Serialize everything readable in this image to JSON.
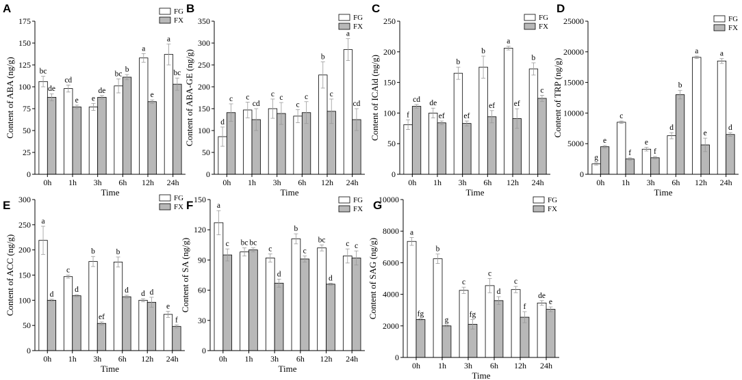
{
  "figure": {
    "colors": {
      "FG": "#ffffff",
      "FX": "#b8b8b8",
      "stroke": "#000000",
      "error": "#999999"
    }
  },
  "chart_data": [
    {
      "id": "A",
      "type": "bar",
      "categories": [
        "0h",
        "1h",
        "3h",
        "6h",
        "12h",
        "24h"
      ],
      "xlabel": "Time",
      "ylabel": "Content of ABA (ng/g)",
      "ylim": [
        0,
        175
      ],
      "yticks": [
        0,
        25,
        50,
        75,
        100,
        125,
        150,
        175
      ],
      "legend": [
        "FG",
        "FX"
      ],
      "legend_position": "top-right",
      "series": [
        {
          "name": "FG",
          "values": [
            106,
            98,
            77,
            101,
            133,
            137
          ],
          "errors": [
            6,
            4,
            4,
            8,
            5,
            12
          ],
          "labels": [
            "bc",
            "cd",
            "e",
            "bc",
            "a",
            "a"
          ]
        },
        {
          "name": "FX",
          "values": [
            88,
            77,
            88,
            111,
            83,
            103
          ],
          "errors": [
            4,
            2,
            2,
            3,
            2,
            7
          ],
          "labels": [
            "de",
            "e",
            "de",
            "b",
            "e",
            "bc"
          ]
        }
      ]
    },
    {
      "id": "B",
      "type": "bar",
      "categories": [
        "0h",
        "1h",
        "3h",
        "6h",
        "12h",
        "24h"
      ],
      "xlabel": "Time",
      "ylabel": "Content of ABA-GE (ng/g)",
      "ylim": [
        0,
        350
      ],
      "yticks": [
        0,
        50,
        100,
        150,
        200,
        250,
        300,
        350
      ],
      "legend": [
        "FG",
        "FX"
      ],
      "legend_position": "top-right",
      "series": [
        {
          "name": "FG",
          "values": [
            86,
            147,
            150,
            133,
            227,
            285
          ],
          "errors": [
            22,
            18,
            22,
            15,
            30,
            25
          ],
          "labels": [
            "d",
            "c",
            "c",
            "c",
            "b",
            "a"
          ]
        },
        {
          "name": "FX",
          "values": [
            141,
            125,
            139,
            141,
            144,
            125
          ],
          "errors": [
            20,
            25,
            25,
            25,
            28,
            25
          ],
          "labels": [
            "c",
            "cd",
            "c",
            "c",
            "c",
            "cd"
          ]
        }
      ]
    },
    {
      "id": "C",
      "type": "bar",
      "categories": [
        "0h",
        "1h",
        "3h",
        "6h",
        "12h",
        "24h"
      ],
      "xlabel": "Time",
      "ylabel": "Content of ICAld (ng/g)",
      "ylim": [
        0,
        250
      ],
      "yticks": [
        0,
        50,
        100,
        150,
        200,
        250
      ],
      "legend": [
        "FG",
        "FX"
      ],
      "legend_position": "top-right",
      "series": [
        {
          "name": "FG",
          "values": [
            81,
            100,
            165,
            175,
            206,
            172
          ],
          "errors": [
            8,
            8,
            10,
            18,
            3,
            10
          ],
          "labels": [
            "f",
            "de",
            "b",
            "b",
            "a",
            "b"
          ]
        },
        {
          "name": "FX",
          "values": [
            111,
            84,
            83,
            94,
            91,
            124
          ],
          "errors": [
            3,
            3,
            4,
            10,
            16,
            5
          ],
          "labels": [
            "cd",
            "ef",
            "ef",
            "ef",
            "ef",
            "c"
          ]
        }
      ]
    },
    {
      "id": "D",
      "type": "bar",
      "categories": [
        "0h",
        "1h",
        "3h",
        "6h",
        "12h",
        "24h"
      ],
      "xlabel": "Time",
      "ylabel": "Content of TRP (ng/g)",
      "ylim": [
        0,
        25000
      ],
      "yticks": [
        0,
        5000,
        10000,
        15000,
        20000,
        25000
      ],
      "legend": [
        "FG",
        "FX"
      ],
      "legend_position": "top-right",
      "series": [
        {
          "name": "FG",
          "values": [
            1700,
            8500,
            4100,
            6300,
            19100,
            18500
          ],
          "errors": [
            200,
            200,
            300,
            500,
            200,
            400
          ],
          "labels": [
            "g",
            "c",
            "e",
            "d",
            "a",
            "a"
          ]
        },
        {
          "name": "FX",
          "values": [
            4500,
            2500,
            2700,
            13000,
            4800,
            6500
          ],
          "errors": [
            200,
            200,
            200,
            700,
            1100,
            300
          ],
          "labels": [
            "e",
            "f",
            "f",
            "b",
            "e",
            "d"
          ]
        }
      ]
    },
    {
      "id": "E",
      "type": "bar",
      "categories": [
        "0h",
        "1h",
        "3h",
        "6h",
        "12h",
        "24h"
      ],
      "xlabel": "Time",
      "ylabel": "Content of ACC (ng/g)",
      "ylim": [
        0,
        300
      ],
      "yticks": [
        0,
        50,
        100,
        150,
        200,
        250,
        300
      ],
      "legend": [
        "FG",
        "FX"
      ],
      "legend_position": "top-right",
      "series": [
        {
          "name": "FG",
          "values": [
            219,
            147,
            177,
            176,
            100,
            72
          ],
          "errors": [
            28,
            3,
            10,
            10,
            3,
            6
          ],
          "labels": [
            "a",
            "c",
            "b",
            "b",
            "d",
            "e"
          ]
        },
        {
          "name": "FX",
          "values": [
            100,
            109,
            54,
            107,
            96,
            48
          ],
          "errors": [
            2,
            2,
            3,
            3,
            10,
            3
          ],
          "labels": [
            "d",
            "d",
            "ef",
            "d",
            "d",
            "f"
          ]
        }
      ]
    },
    {
      "id": "F",
      "type": "bar",
      "categories": [
        "0h",
        "1h",
        "3h",
        "6h",
        "12h",
        "24h"
      ],
      "xlabel": "Time",
      "ylabel": "Content of SA (ng/g)",
      "ylim": [
        0,
        150
      ],
      "yticks": [
        0,
        30,
        60,
        90,
        120,
        150
      ],
      "legend": [
        "FG",
        "FX"
      ],
      "legend_position": "top-right",
      "series": [
        {
          "name": "FG",
          "values": [
            127,
            98,
            92,
            111,
            102,
            94
          ],
          "errors": [
            12,
            4,
            4,
            5,
            3,
            7
          ],
          "labels": [
            "a",
            "bc",
            "c",
            "b",
            "bc",
            "c"
          ]
        },
        {
          "name": "FX",
          "values": [
            95,
            100,
            67,
            91,
            66,
            92
          ],
          "errors": [
            6,
            2,
            4,
            3,
            1,
            7
          ],
          "labels": [
            "c",
            "bc",
            "d",
            "c",
            "d",
            "c"
          ]
        }
      ]
    },
    {
      "id": "G",
      "type": "bar",
      "categories": [
        "0h",
        "1h",
        "3h",
        "6h",
        "12h",
        "24h"
      ],
      "xlabel": "Time",
      "ylabel": "Content of SAG (ng/g)",
      "ylim": [
        0,
        10000
      ],
      "yticks": [
        0,
        2000,
        4000,
        6000,
        8000,
        10000
      ],
      "legend": [
        "FG",
        "FX"
      ],
      "legend_position": "top-right",
      "series": [
        {
          "name": "FG",
          "values": [
            7350,
            6250,
            4250,
            4550,
            4300,
            3450
          ],
          "errors": [
            250,
            300,
            200,
            450,
            200,
            150
          ],
          "labels": [
            "a",
            "b",
            "c",
            "c",
            "c",
            "de"
          ]
        },
        {
          "name": "FX",
          "values": [
            2400,
            2000,
            2100,
            3600,
            2550,
            3050
          ],
          "errors": [
            50,
            50,
            300,
            250,
            350,
            150
          ],
          "labels": [
            "fg",
            "g",
            "fg",
            "d",
            "f",
            "e"
          ]
        }
      ]
    }
  ]
}
